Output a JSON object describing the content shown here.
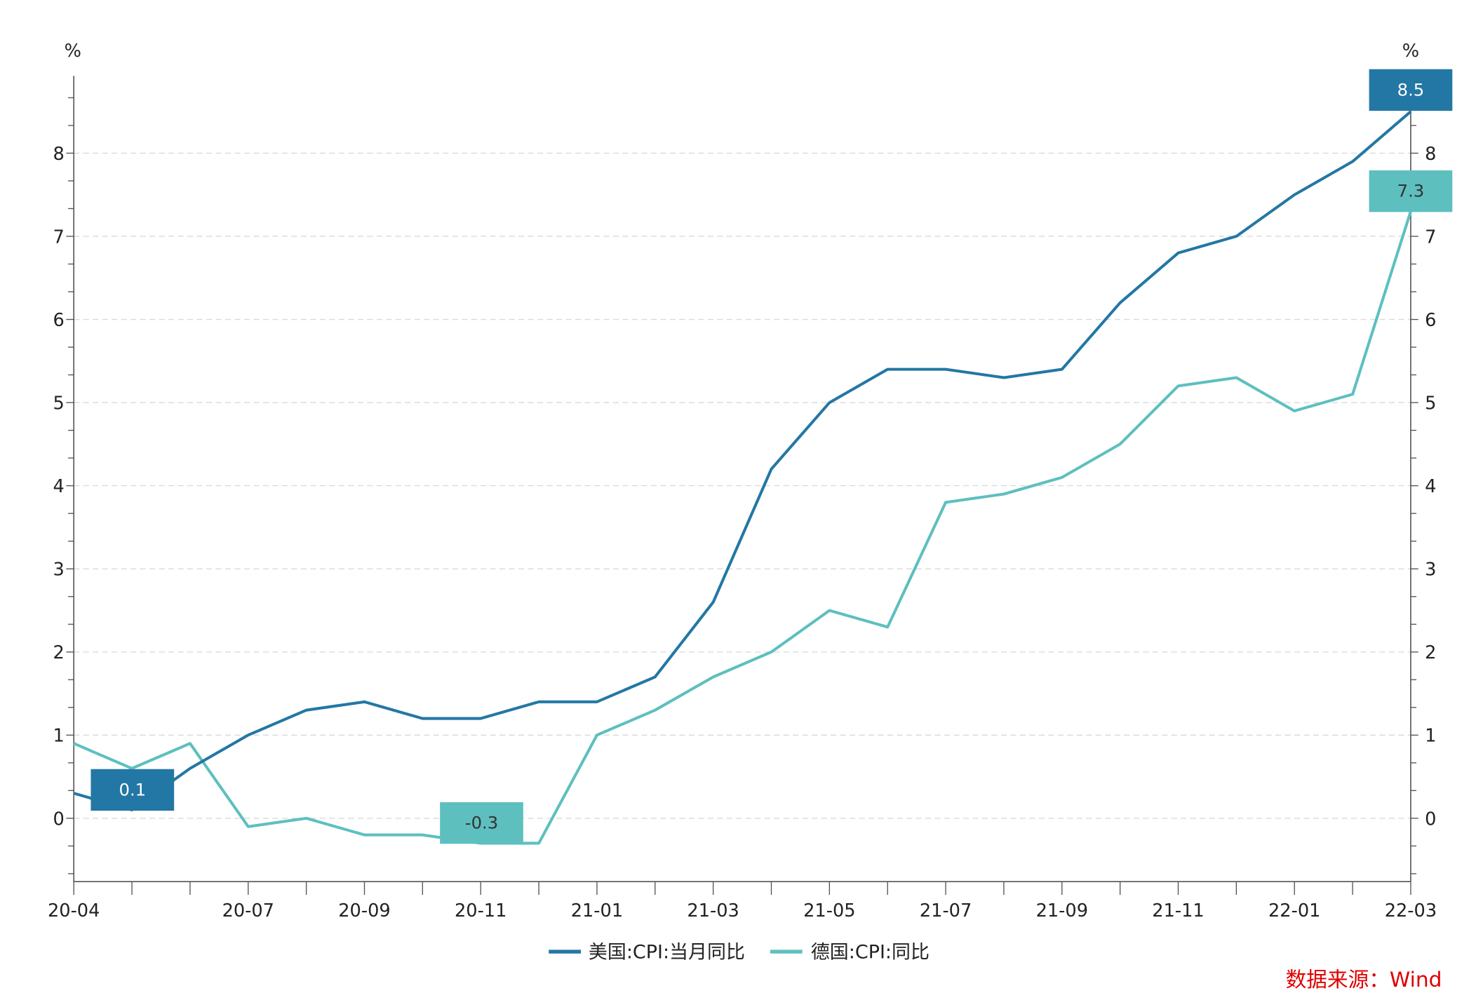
{
  "chart_data": {
    "type": "line",
    "title": "",
    "left_axis_unit": "%",
    "right_axis_unit": "%",
    "ylim": [
      -0.75,
      8.9
    ],
    "y_ticks": [
      0,
      1,
      2,
      3,
      4,
      5,
      6,
      7,
      8
    ],
    "grid": "horizontal dashed",
    "x": [
      "20-04",
      "20-05",
      "20-06",
      "20-07",
      "20-08",
      "20-09",
      "20-10",
      "20-11",
      "20-12",
      "21-01",
      "21-02",
      "21-03",
      "21-04",
      "21-05",
      "21-06",
      "21-07",
      "21-08",
      "21-09",
      "21-10",
      "21-11",
      "21-12",
      "22-01",
      "22-02",
      "22-03"
    ],
    "x_tick_labels": [
      "20-04",
      "20-07",
      "20-09",
      "20-11",
      "21-01",
      "21-03",
      "21-05",
      "21-07",
      "21-09",
      "21-11",
      "22-01",
      "22-03"
    ],
    "series": [
      {
        "name": "美国:CPI:当月同比",
        "color": "#2377a4",
        "values": [
          0.3,
          0.1,
          0.6,
          1.0,
          1.3,
          1.4,
          1.2,
          1.2,
          1.4,
          1.4,
          1.7,
          2.6,
          4.2,
          5.0,
          5.4,
          5.4,
          5.3,
          5.4,
          6.2,
          6.8,
          7.0,
          7.5,
          7.9,
          8.5
        ]
      },
      {
        "name": "德国:CPI:同比",
        "color": "#5ebfbf",
        "values": [
          0.9,
          0.6,
          0.9,
          -0.1,
          0.0,
          -0.2,
          -0.2,
          -0.3,
          -0.3,
          1.0,
          1.3,
          1.7,
          2.0,
          2.5,
          2.3,
          3.8,
          3.9,
          4.1,
          4.5,
          5.2,
          5.3,
          4.9,
          5.1,
          7.3
        ]
      }
    ],
    "annotations": [
      {
        "series": 0,
        "x": "20-05",
        "text": "0.1"
      },
      {
        "series": 1,
        "x": "20-11",
        "text": "-0.3"
      },
      {
        "series": 0,
        "x": "22-03",
        "text": "8.5"
      },
      {
        "series": 1,
        "x": "22-03",
        "text": "7.3"
      }
    ],
    "legend_position": "bottom-center",
    "source": "数据来源：Wind",
    "source_color": "#e00000"
  }
}
